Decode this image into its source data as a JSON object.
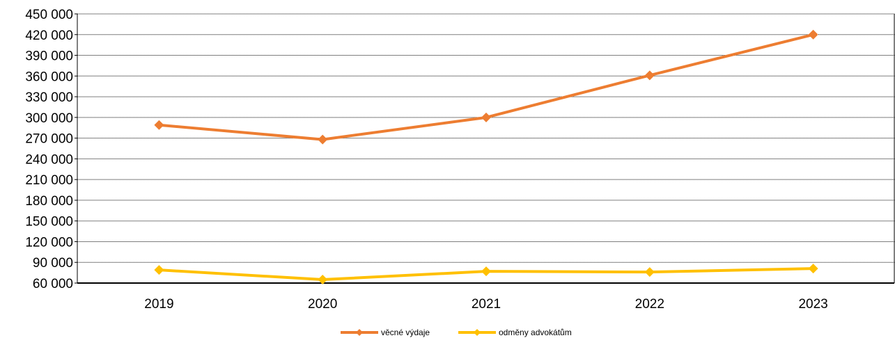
{
  "chart_data": {
    "type": "line",
    "title": "",
    "xlabel": "",
    "ylabel": "",
    "categories": [
      "2019",
      "2020",
      "2021",
      "2022",
      "2023"
    ],
    "ylim": [
      60000,
      450000
    ],
    "yticks": [
      60000,
      90000,
      120000,
      150000,
      180000,
      210000,
      240000,
      270000,
      300000,
      330000,
      360000,
      390000,
      420000,
      450000
    ],
    "ytick_labels": [
      "60 000",
      "90 000",
      "120 000",
      "150 000",
      "180 000",
      "210 000",
      "240 000",
      "270 000",
      "300 000",
      "330 000",
      "360 000",
      "390 000",
      "420 000",
      "450 000"
    ],
    "grid": true,
    "legend_position": "bottom-center",
    "series": [
      {
        "name": "věcné výdaje",
        "color": "#ED7D31",
        "marker": "diamond",
        "values": [
          289000,
          268000,
          300000,
          361000,
          420000
        ]
      },
      {
        "name": "odměny advokátům",
        "color": "#FFC000",
        "marker": "diamond",
        "values": [
          79000,
          65000,
          77000,
          76000,
          81000
        ]
      }
    ]
  }
}
